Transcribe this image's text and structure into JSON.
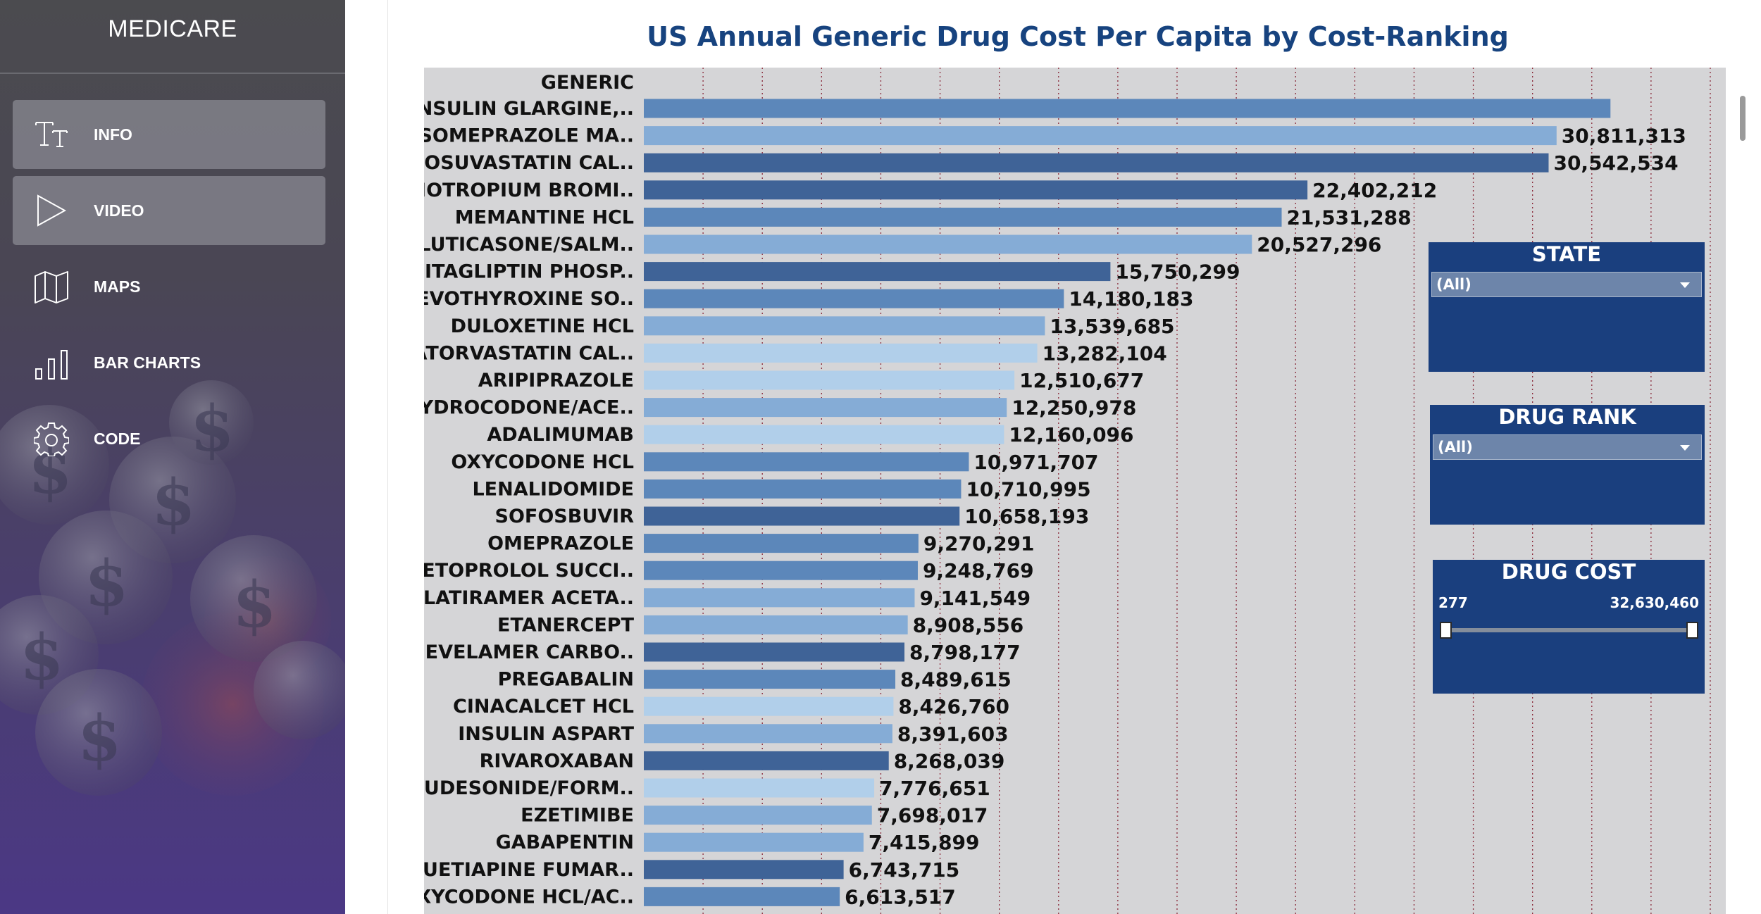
{
  "app": {
    "title": "MEDICARE"
  },
  "nav": {
    "items": [
      {
        "label": "INFO",
        "icon": "text-icon"
      },
      {
        "label": "VIDEO",
        "icon": "play-icon"
      },
      {
        "label": "MAPS",
        "icon": "map-icon"
      },
      {
        "label": "BAR CHARTS",
        "icon": "bar-chart-icon"
      },
      {
        "label": "CODE",
        "icon": "gear-icon"
      }
    ]
  },
  "colors": {
    "title": "#17437f",
    "filter_bg": "#1a3f7e",
    "chart_bg": "#d5d5d7",
    "shades": {
      "dark": "#3f6397",
      "mid": "#5c87ba",
      "light": "#85acd6",
      "pale": "#b1cfea"
    }
  },
  "filters": {
    "state": {
      "title": "STATE",
      "value": "(All)"
    },
    "drug_rank": {
      "title": "DRUG RANK",
      "value": "(All)"
    },
    "drug_cost": {
      "title": "DRUG COST",
      "min_label": "277",
      "max_label": "32,630,460",
      "min": 277,
      "max": 32630460
    }
  },
  "chart_data": {
    "type": "bar",
    "orientation": "horizontal",
    "title": "US Annual Generic Drug Cost Per Capita by Cost-Ranking",
    "category_header": "GENERIC",
    "xlim": [
      0,
      36000000
    ],
    "grid": "vertical dotted",
    "categories": [
      "INSULIN GLARGINE,..",
      "ESOMEPRAZOLE MA..",
      "ROSUVASTATIN CAL..",
      "TIOTROPIUM BROMI..",
      "MEMANTINE HCL",
      "FLUTICASONE/SALM..",
      "SITAGLIPTIN PHOSP..",
      "LEVOTHYROXINE SO..",
      "DULOXETINE HCL",
      "ATORVASTATIN CAL..",
      "ARIPIPRAZOLE",
      "HYDROCODONE/ACE..",
      "ADALIMUMAB",
      "OXYCODONE HCL",
      "LENALIDOMIDE",
      "SOFOSBUVIR",
      "OMEPRAZOLE",
      "METOPROLOL SUCCI..",
      "GLATIRAMER ACETA..",
      "ETANERCEPT",
      "SEVELAMER CARBO..",
      "PREGABALIN",
      "CINACALCET HCL",
      "INSULIN ASPART",
      "RIVAROXABAN",
      "BUDESONIDE/FORM..",
      "EZETIMIBE",
      "GABAPENTIN",
      "QUETIAPINE FUMAR..",
      "OXYCODONE HCL/AC.."
    ],
    "values": [
      32630460,
      30811313,
      30542534,
      22402212,
      21531288,
      20527296,
      15750299,
      14180183,
      13539685,
      13282104,
      12510677,
      12250978,
      12160096,
      10971707,
      10710995,
      10658193,
      9270291,
      9248769,
      9141549,
      8908556,
      8798177,
      8489615,
      8426760,
      8391603,
      8268039,
      7776651,
      7698017,
      7415899,
      6743715,
      6613517
    ],
    "value_labels": [
      "",
      "30,811,313",
      "30,542,534",
      "22,402,212",
      "21,531,288",
      "20,527,296",
      "15,750,299",
      "14,180,183",
      "13,539,685",
      "13,282,104",
      "12,510,677",
      "12,250,978",
      "12,160,096",
      "10,971,707",
      "10,710,995",
      "10,658,193",
      "9,270,291",
      "9,248,769",
      "9,141,549",
      "8,908,556",
      "8,798,177",
      "8,489,615",
      "8,426,760",
      "8,391,603",
      "8,268,039",
      "7,776,651",
      "7,698,017",
      "7,415,899",
      "6,743,715",
      "6,613,517"
    ],
    "bar_shades": [
      "mid",
      "light",
      "dark",
      "dark",
      "mid",
      "light",
      "dark",
      "mid",
      "light",
      "pale",
      "pale",
      "light",
      "pale",
      "mid",
      "mid",
      "dark",
      "mid",
      "mid",
      "light",
      "light",
      "dark",
      "mid",
      "pale",
      "light",
      "dark",
      "pale",
      "light",
      "light",
      "dark",
      "mid"
    ]
  }
}
